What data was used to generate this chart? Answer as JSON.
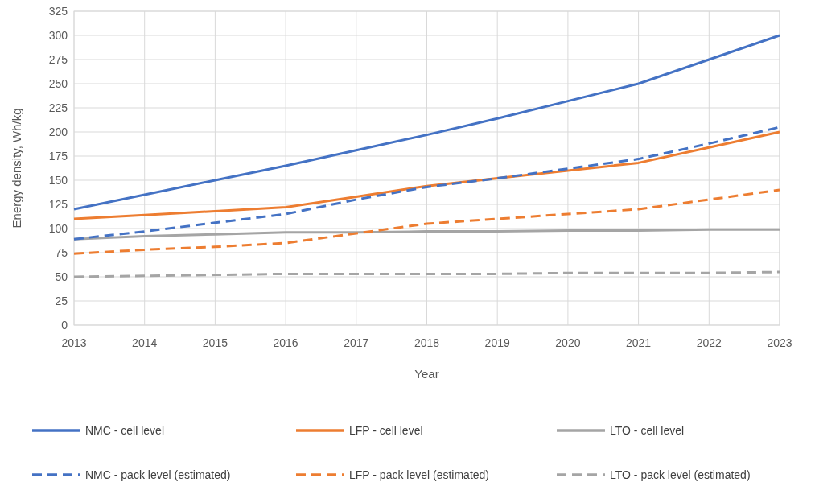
{
  "chart_data": {
    "type": "line",
    "xlabel": "Year",
    "ylabel": "Energy density, Wh/kg",
    "categories": [
      "2013",
      "2014",
      "2015",
      "2016",
      "2017",
      "2018",
      "2019",
      "2020",
      "2021",
      "2022",
      "2023"
    ],
    "ylim": [
      0,
      325
    ],
    "yticks": [
      0,
      25,
      50,
      75,
      100,
      125,
      150,
      175,
      200,
      225,
      250,
      275,
      300,
      325
    ],
    "grid": true,
    "legend": "bottom",
    "marker": "none",
    "series": [
      {
        "name": "NMC - cell level",
        "color": "#4472c4",
        "line_style": "solid",
        "values": [
          120,
          135,
          150,
          165,
          181,
          197,
          214,
          232,
          250,
          275,
          300
        ]
      },
      {
        "name": "LFP - cell level",
        "color": "#ed7d31",
        "line_style": "solid",
        "values": [
          110,
          114,
          118,
          122,
          133,
          144,
          152,
          160,
          168,
          184,
          200
        ]
      },
      {
        "name": "LTO - cell level",
        "color": "#a5a5a5",
        "line_style": "solid",
        "values": [
          89,
          92,
          94,
          96,
          96,
          97,
          97,
          98,
          98,
          99,
          99
        ]
      },
      {
        "name": "NMC - pack level (estimated)",
        "color": "#4472c4",
        "line_style": "dashed",
        "values": [
          89,
          97,
          106,
          115,
          130,
          143,
          152,
          162,
          172,
          188,
          205
        ]
      },
      {
        "name": "LFP - pack level (estimated)",
        "color": "#ed7d31",
        "line_style": "dashed",
        "values": [
          74,
          78,
          81,
          85,
          95,
          105,
          110,
          115,
          120,
          130,
          140
        ]
      },
      {
        "name": "LTO  - pack level (estimated)",
        "color": "#a5a5a5",
        "line_style": "dashed",
        "values": [
          50,
          51,
          52,
          53,
          53,
          53,
          53,
          54,
          54,
          54,
          55
        ]
      }
    ]
  }
}
